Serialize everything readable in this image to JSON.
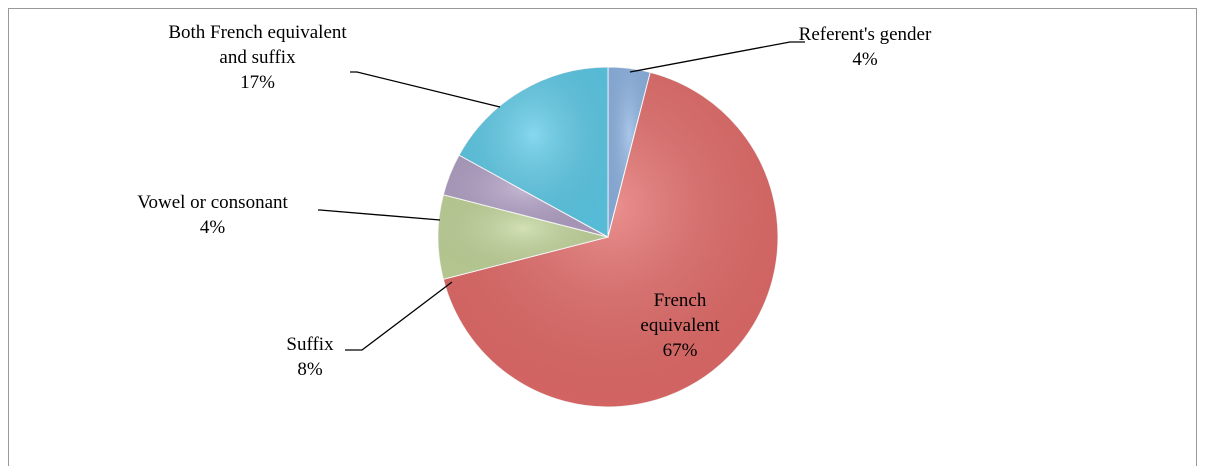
{
  "chart_data": {
    "type": "pie",
    "categories": [
      "Referent's gender",
      "French equivalent",
      "Suffix",
      "Vowel or consonant",
      "Both French equivalent and suffix"
    ],
    "values": [
      4,
      67,
      8,
      4,
      17
    ],
    "value_labels": [
      "4%",
      "67%",
      "8%",
      "4%",
      "17%"
    ],
    "colors": [
      "#8eb4e3",
      "#e46c6a",
      "#c3d69b",
      "#b3a2c7",
      "#5ecbe8"
    ]
  }
}
